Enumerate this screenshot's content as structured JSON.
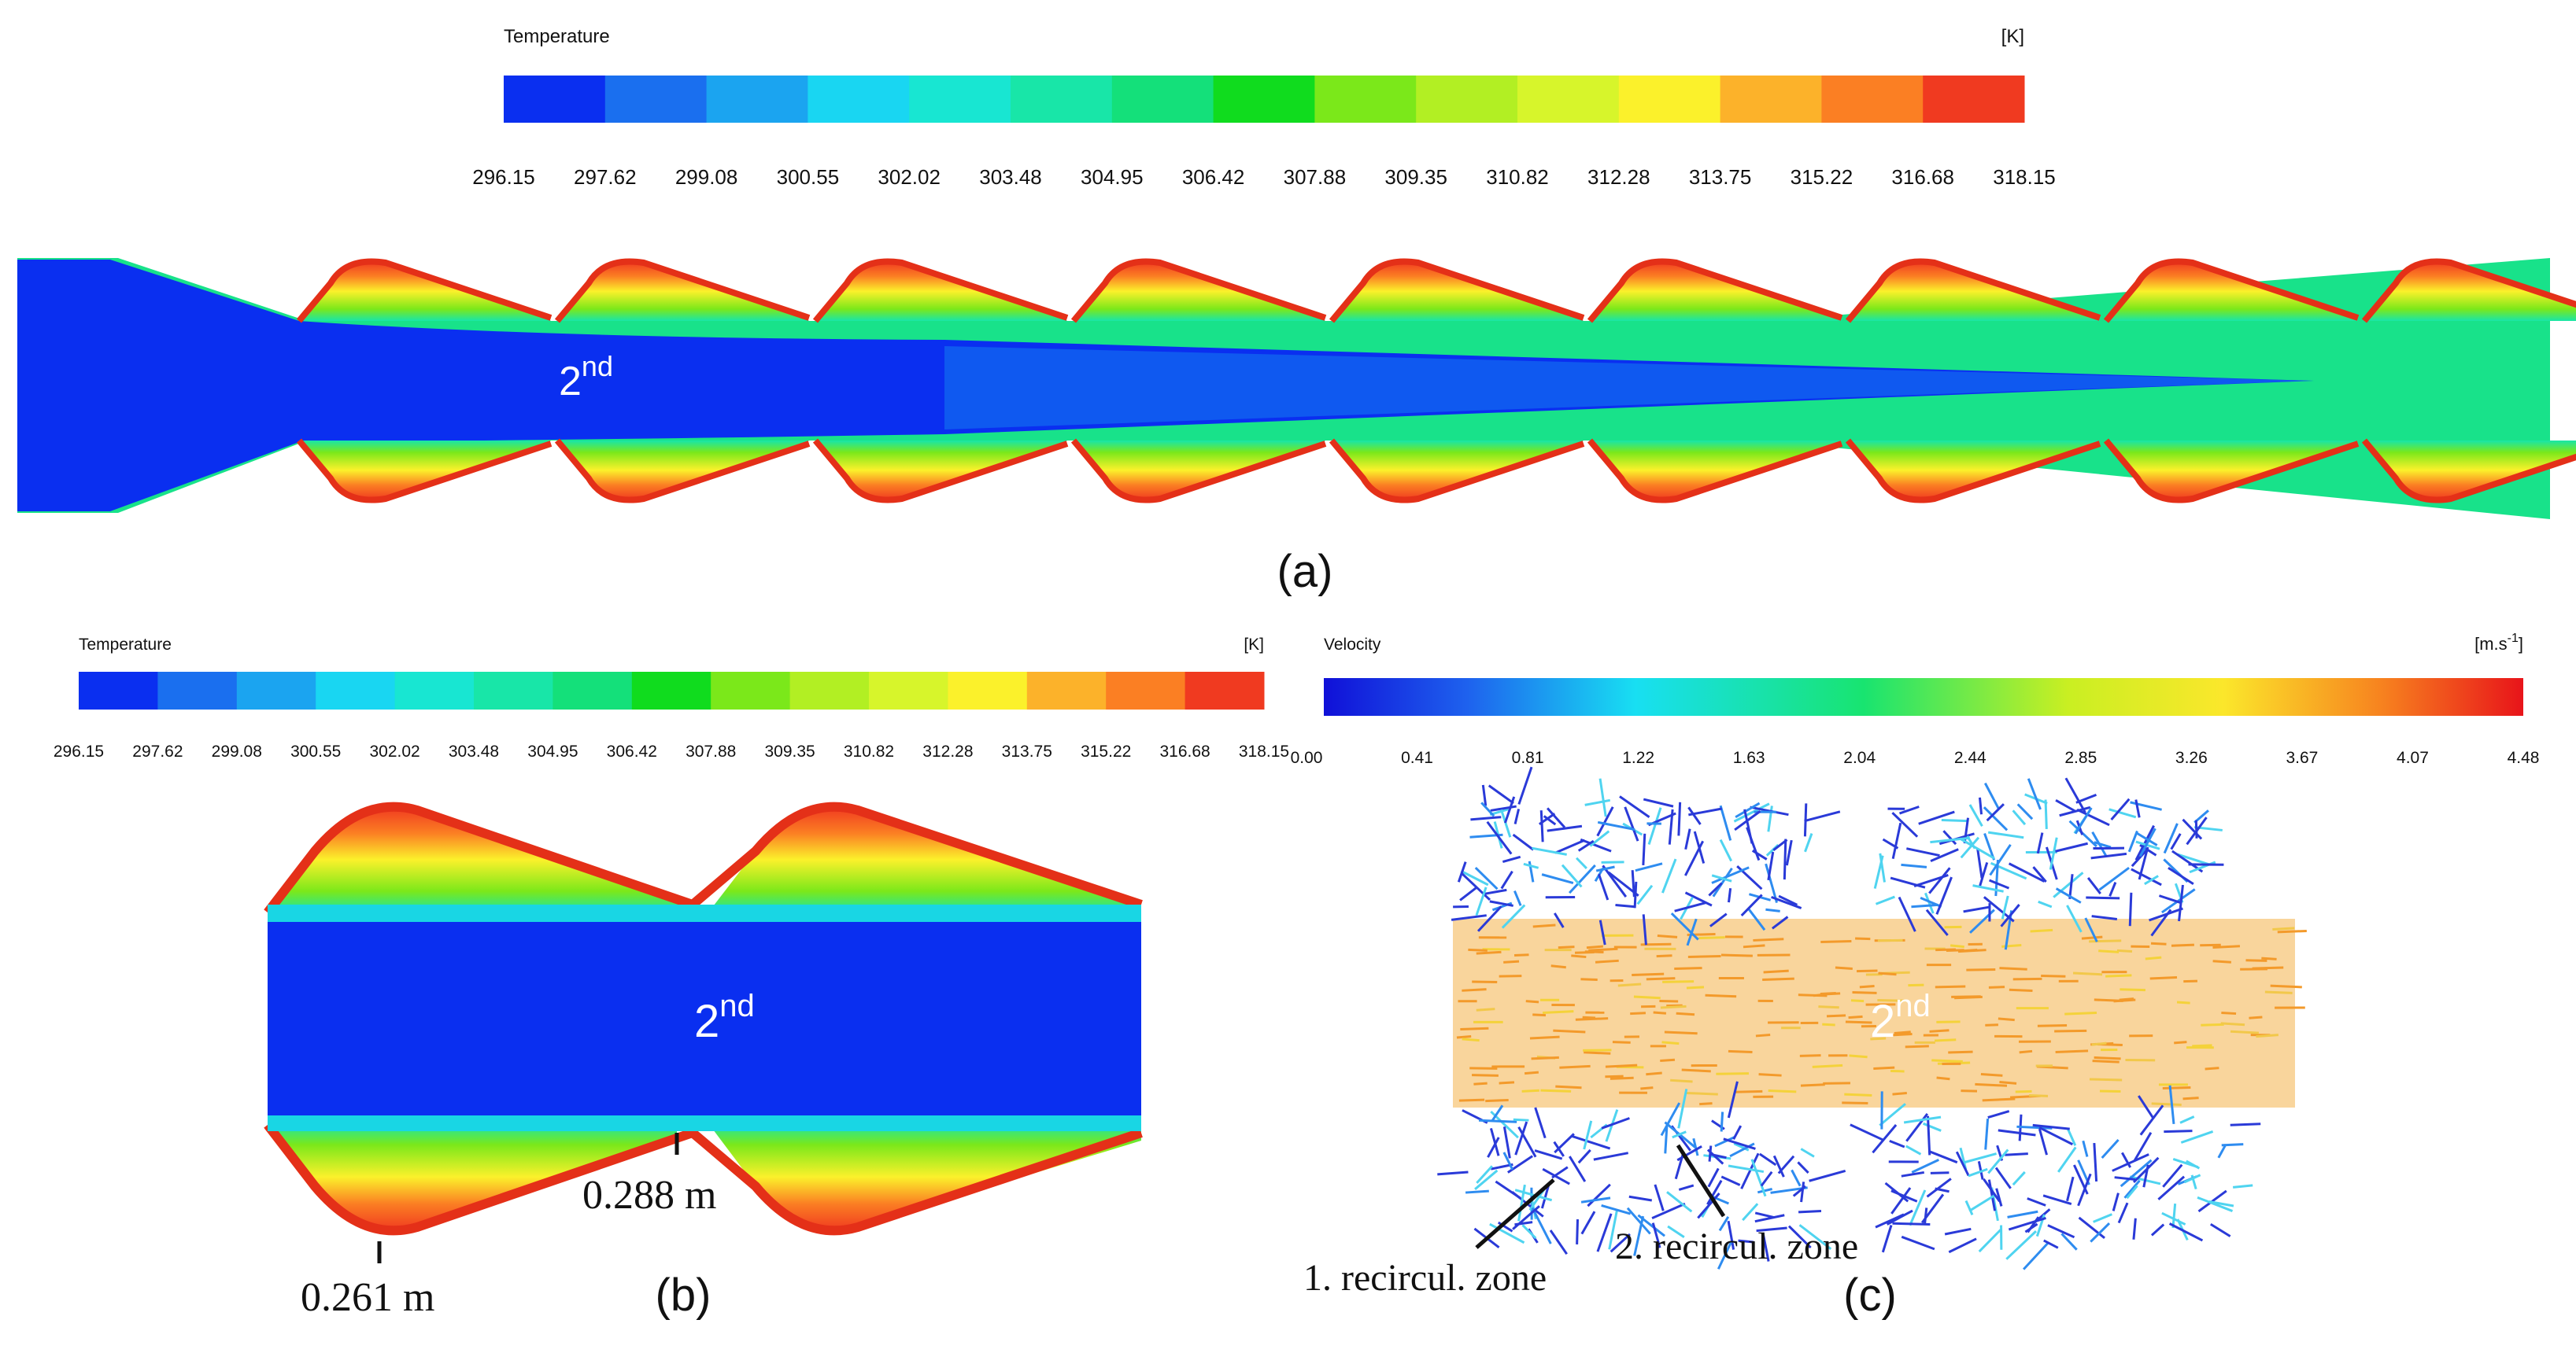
{
  "figure": {
    "panel_a": {
      "label": "(a)",
      "legend": {
        "title": "Temperature",
        "unit": "[K]",
        "ticks": [
          "296.15",
          "297.62",
          "299.08",
          "300.55",
          "302.02",
          "303.48",
          "304.95",
          "306.42",
          "307.88",
          "309.35",
          "310.82",
          "312.28",
          "313.75",
          "315.22",
          "316.68",
          "318.15"
        ],
        "colors": [
          "#0a2ff0",
          "#1a6fef",
          "#1ba4f0",
          "#19d6f2",
          "#18e6d2",
          "#18e6a8",
          "#14e07a",
          "#10dc1e",
          "#7be81a",
          "#b2ef23",
          "#d7f52b",
          "#fbf12b",
          "#fcb22a",
          "#fb7f23",
          "#f03a20"
        ]
      },
      "marker_base": "2",
      "marker_sup": "nd"
    },
    "panel_b": {
      "label": "(b)",
      "legend": {
        "title": "Temperature",
        "unit": "[K]",
        "ticks": [
          "296.15",
          "297.62",
          "299.08",
          "300.55",
          "302.02",
          "303.48",
          "304.95",
          "306.42",
          "307.88",
          "309.35",
          "310.82",
          "312.28",
          "313.75",
          "315.22",
          "316.68",
          "318.15"
        ]
      },
      "marker_base": "2",
      "marker_sup": "nd",
      "dim_throat": "0.288 m",
      "dim_max": "0.261 m"
    },
    "panel_c": {
      "label": "(c)",
      "legend": {
        "title": "Velocity",
        "unit_base": "[m.s",
        "unit_sup": "-1",
        "unit_close": "]",
        "ticks": [
          "0.00",
          "0.41",
          "0.81",
          "1.22",
          "1.63",
          "2.04",
          "2.44",
          "2.85",
          "3.26",
          "3.67",
          "4.07",
          "4.48"
        ]
      },
      "marker_base": "2",
      "marker_sup": "nd",
      "zone1": "1. recircul. zone",
      "zone2": "2. recircul. zone"
    }
  }
}
